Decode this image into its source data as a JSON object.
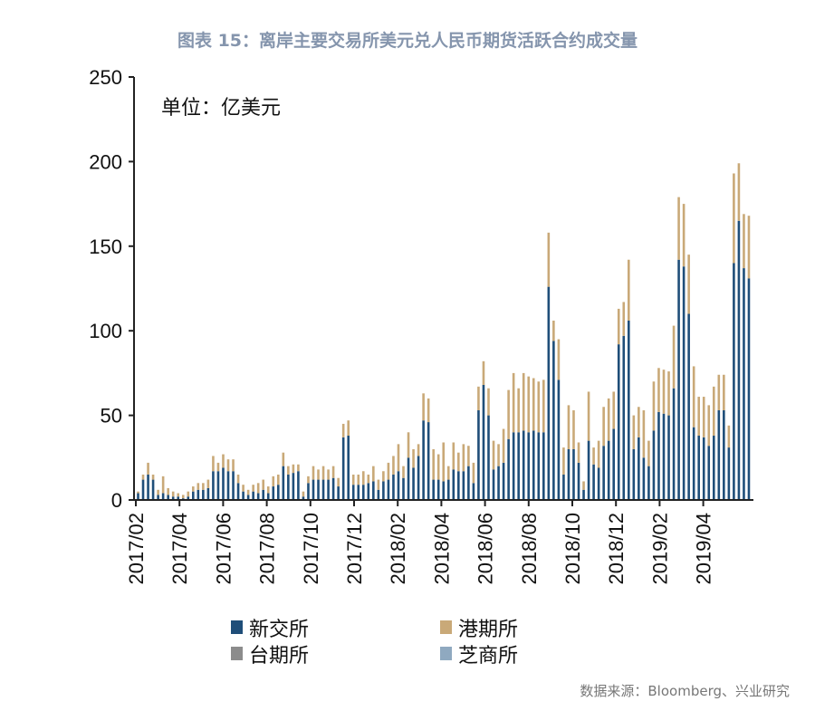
{
  "title": "图表 15：离岸主要交易所美元兑人民币期货活跃合约成交量",
  "source": "数据来源：Bloomberg、兴业研究",
  "chart_data": {
    "type": "bar",
    "stacked": true,
    "frequency": "weekly",
    "unit_label": "单位：亿美元",
    "ylim": [
      0,
      250
    ],
    "yticks": [
      0,
      50,
      100,
      150,
      200,
      250
    ],
    "xtick_labels": [
      "2017/02",
      "2017/04",
      "2017/06",
      "2017/08",
      "2017/10",
      "2017/12",
      "2018/02",
      "2018/04",
      "2018/06",
      "2018/08",
      "2018/10",
      "2018/12",
      "2019/02",
      "2019/04"
    ],
    "grid": false,
    "legend_placement": "bottom",
    "series": [
      {
        "name": "新交所",
        "color": "#1f4e79",
        "values": [
          4,
          12,
          15,
          12,
          3,
          4,
          3,
          2,
          2,
          1,
          2,
          5,
          6,
          6,
          7,
          17,
          17,
          19,
          17,
          17,
          10,
          5,
          3,
          5,
          4,
          6,
          4,
          8,
          9,
          20,
          15,
          16,
          17,
          2,
          10,
          12,
          12,
          12,
          12,
          13,
          8,
          37,
          38,
          9,
          9,
          9,
          10,
          11,
          6,
          11,
          12,
          15,
          17,
          13,
          25,
          19,
          26,
          47,
          46,
          12,
          12,
          11,
          12,
          18,
          17,
          17,
          20,
          10,
          53,
          68,
          50,
          18,
          20,
          22,
          36,
          40,
          40,
          41,
          40,
          41,
          40,
          40,
          126,
          94,
          71,
          15,
          30,
          30,
          22,
          6,
          35,
          21,
          19,
          32,
          35,
          42,
          92,
          97,
          106,
          30,
          37,
          25,
          20,
          41,
          52,
          51,
          50,
          66,
          142,
          138,
          110,
          43,
          38,
          37,
          32,
          38,
          53,
          53,
          31,
          140,
          165,
          137,
          131
        ]
      },
      {
        "name": "港期所",
        "color": "#c9a978",
        "values": [
          1,
          3,
          7,
          3,
          3,
          10,
          4,
          3,
          2,
          2,
          3,
          3,
          4,
          4,
          5,
          9,
          5,
          8,
          7,
          7,
          5,
          4,
          3,
          4,
          6,
          6,
          4,
          6,
          6,
          8,
          5,
          5,
          4,
          3,
          4,
          8,
          6,
          8,
          6,
          7,
          5,
          8,
          9,
          6,
          6,
          8,
          5,
          9,
          6,
          6,
          10,
          11,
          16,
          7,
          15,
          11,
          7,
          16,
          14,
          18,
          15,
          23,
          8,
          16,
          11,
          16,
          12,
          12,
          14,
          14,
          16,
          17,
          13,
          20,
          29,
          35,
          26,
          34,
          33,
          31,
          30,
          31,
          32,
          12,
          24,
          16,
          26,
          23,
          12,
          5,
          29,
          10,
          16,
          23,
          25,
          22,
          21,
          20,
          36,
          20,
          18,
          28,
          15,
          29,
          26,
          26,
          26,
          37,
          37,
          37,
          35,
          36,
          23,
          24,
          24,
          29,
          21,
          21,
          13,
          53,
          34,
          32,
          37
        ]
      },
      {
        "name": "台期所",
        "color": "#8c8c8c",
        "values": []
      },
      {
        "name": "芝商所",
        "color": "#8fa9c0",
        "values": []
      }
    ]
  }
}
